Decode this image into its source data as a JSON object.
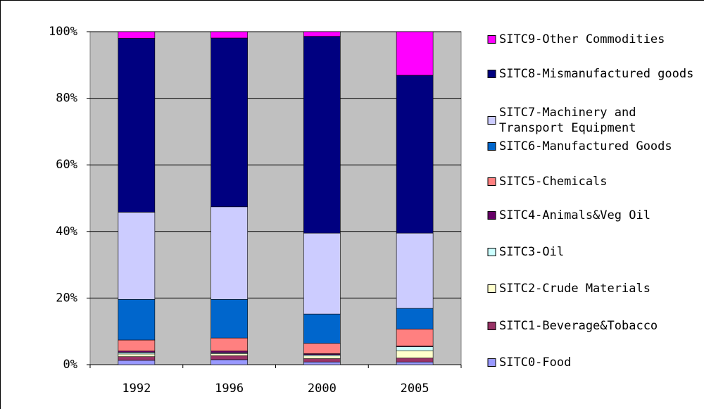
{
  "chart_data": {
    "type": "stacked_bar",
    "categories": [
      "1992",
      "1996",
      "2000",
      "2005"
    ],
    "series": [
      {
        "name": "SITC0-Food",
        "color": "#9999ff",
        "values": [
          1.3,
          1.5,
          0.8,
          0.8
        ]
      },
      {
        "name": "SITC1-Beverage&Tobacco",
        "color": "#993366",
        "values": [
          1.1,
          1.2,
          1.0,
          1.2
        ]
      },
      {
        "name": "SITC2-Crude Materials",
        "color": "#ffffcc",
        "values": [
          0.8,
          0.6,
          0.8,
          2.2
        ]
      },
      {
        "name": "SITC3-Oil",
        "color": "#ccffff",
        "values": [
          0.5,
          0.3,
          0.4,
          1.2
        ]
      },
      {
        "name": "SITC4-Animals&Veg Oil",
        "color": "#660066",
        "values": [
          0.4,
          0.5,
          0.3,
          0.2
        ]
      },
      {
        "name": "SITC5-Chemicals",
        "color": "#ff8080",
        "values": [
          3.3,
          3.9,
          3.1,
          5.1
        ]
      },
      {
        "name": "SITC6-Manufactured Goods",
        "color": "#0066cc",
        "values": [
          12.2,
          11.6,
          8.8,
          6.2
        ]
      },
      {
        "name": "SITC7-Machinery and Transport Equipment",
        "color": "#ccccff",
        "values": [
          26.2,
          27.8,
          24.3,
          22.6
        ]
      },
      {
        "name": "SITC8-Mismanufactured goods",
        "color": "#000080",
        "values": [
          52.2,
          50.7,
          59.1,
          47.4
        ]
      },
      {
        "name": "SITC9-Other Commodities",
        "color": "#ff00ff",
        "values": [
          2.0,
          1.9,
          1.4,
          13.1
        ]
      }
    ],
    "ylim": [
      0,
      100
    ],
    "yticks": [
      {
        "value": 0,
        "label": "0%"
      },
      {
        "value": 20,
        "label": "20%"
      },
      {
        "value": 40,
        "label": "40%"
      },
      {
        "value": 60,
        "label": "60%"
      },
      {
        "value": 80,
        "label": "80%"
      },
      {
        "value": 100,
        "label": "100%"
      }
    ],
    "grid": true,
    "legend": "right"
  }
}
